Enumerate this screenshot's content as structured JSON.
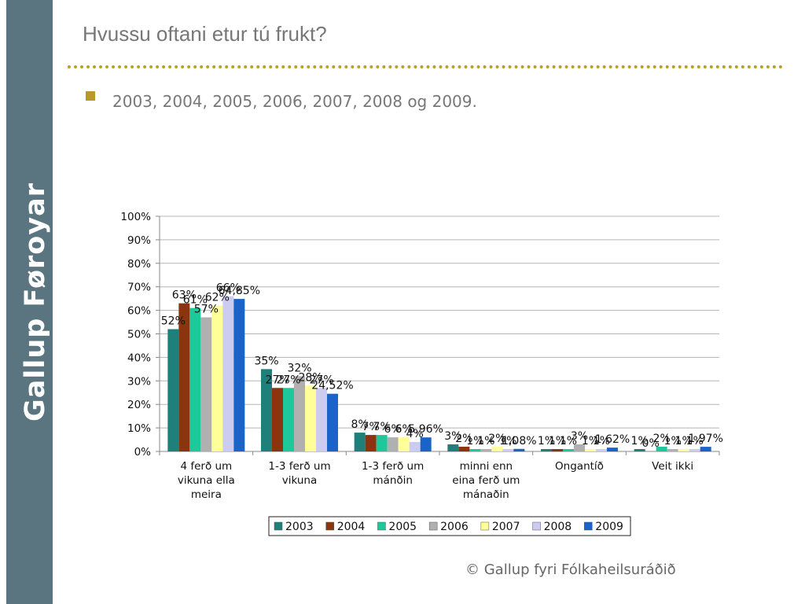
{
  "sidebar": {
    "brand": "Gallup Føroyar"
  },
  "slide": {
    "title": "Hvussu oftani etur tú frukt?",
    "bullet": "2003, 2004, 2005, 2006, 2007, 2008 og 2009.",
    "copyright": "© Gallup fyri Fólkaheilsuráðið"
  },
  "chart_data": {
    "type": "bar",
    "title": "",
    "xlabel": "",
    "ylabel": "",
    "ylim": [
      0,
      1
    ],
    "y_ticks": [
      "0%",
      "10%",
      "20%",
      "30%",
      "40%",
      "50%",
      "60%",
      "70%",
      "80%",
      "90%",
      "100%"
    ],
    "grid": true,
    "legend": "bottom",
    "categories": [
      [
        "4 ferð um",
        "vikuna ella",
        "meira"
      ],
      [
        "1-3 ferð um",
        "vikuna"
      ],
      [
        "1-3 ferð um",
        "mánðin"
      ],
      [
        "minni enn",
        "eina ferð um",
        "mánaðin"
      ],
      [
        "Ongantíð"
      ],
      [
        "Veit ikki"
      ]
    ],
    "series": [
      {
        "name": "2003",
        "color": "#1f7f7a",
        "values": [
          0.52,
          0.35,
          0.08,
          0.03,
          0.01,
          0.01
        ],
        "labels": [
          "52%",
          "35%",
          "8%",
          "3%",
          "1%",
          "1%"
        ]
      },
      {
        "name": "2004",
        "color": "#8b3510",
        "values": [
          0.63,
          0.27,
          0.07,
          0.02,
          0.01,
          0.0
        ],
        "labels": [
          "63%",
          "27%",
          "7%",
          "2%",
          "1%",
          "0%"
        ]
      },
      {
        "name": "2005",
        "color": "#1fc89a",
        "values": [
          0.61,
          0.27,
          0.07,
          0.01,
          0.01,
          0.02
        ],
        "labels": [
          "61%",
          "27%",
          "7%",
          "1%",
          "1%",
          "2%"
        ]
      },
      {
        "name": "2006",
        "color": "#b0b0b0",
        "values": [
          0.57,
          0.32,
          0.06,
          0.01,
          0.03,
          0.01
        ],
        "labels": [
          "57%",
          "32%",
          "6%",
          "1%",
          "3%",
          "1%"
        ]
      },
      {
        "name": "2007",
        "color": "#ffff99",
        "values": [
          0.62,
          0.28,
          0.06,
          0.02,
          0.01,
          0.01
        ],
        "labels": [
          "62%",
          "28%",
          "6%",
          "2%",
          "1%",
          "1%"
        ]
      },
      {
        "name": "2008",
        "color": "#ccccf0",
        "values": [
          0.66,
          0.27,
          0.04,
          0.01,
          0.01,
          0.01
        ],
        "labels": [
          "66%",
          "27%",
          "4%",
          "1%",
          "1%",
          "1%"
        ]
      },
      {
        "name": "2009",
        "color": "#1a63c8",
        "values": [
          0.6485,
          0.2452,
          0.0596,
          0.0108,
          0.0162,
          0.0197
        ],
        "labels": [
          "64,85%",
          "24,52%",
          "5,96%",
          "1,08%",
          "1,62%",
          "1,97%"
        ]
      }
    ]
  }
}
